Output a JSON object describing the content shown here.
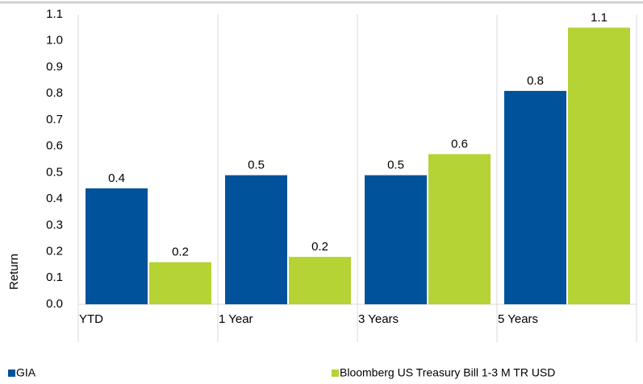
{
  "chart_data": {
    "type": "bar",
    "y_label": "Return",
    "categories": [
      "YTD",
      "1 Year",
      "3 Years",
      "5 Years"
    ],
    "series": [
      {
        "name": "GIA",
        "color": "#00529b",
        "values": [
          0.44,
          0.49,
          0.49,
          0.81
        ],
        "value_labels": [
          "0.4",
          "0.5",
          "0.5",
          "0.8"
        ]
      },
      {
        "name": "Bloomberg US Treasury Bill 1-3 M TR USD",
        "color": "#b5d334",
        "values": [
          0.16,
          0.18,
          0.57,
          1.05
        ],
        "value_labels": [
          "0.2",
          "0.2",
          "0.6",
          "1.1"
        ]
      }
    ],
    "ylim": [
      0,
      1.1
    ],
    "yticks": [
      {
        "value": 0,
        "label": "0.0"
      },
      0.1,
      0.2,
      0.3,
      0.4,
      0.5,
      0.6,
      0.7,
      0.8,
      0.9,
      {
        "value": 1,
        "label": "1.0"
      },
      1.1
    ],
    "grid": false
  }
}
